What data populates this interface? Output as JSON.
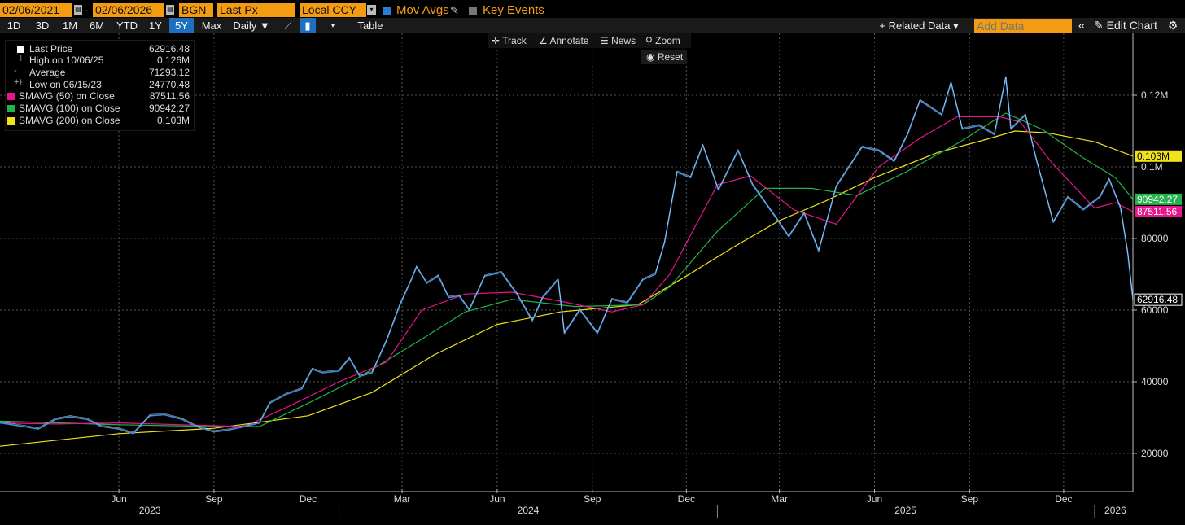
{
  "toolbar": {
    "start_date": "02/06/2021",
    "end_date": "02/06/2026",
    "source": "BGN",
    "field": "Last Px",
    "currency": "Local CCY",
    "mov_avgs": "Mov Avgs",
    "key_events": "Key Events",
    "periods": [
      "1D",
      "3D",
      "1M",
      "6M",
      "YTD",
      "1Y",
      "5Y",
      "Max"
    ],
    "selected_period": "5Y",
    "frequency": "Daily ▼",
    "table": "Table",
    "related_data": "+ Related Data ▾",
    "add_data_placeholder": "Add Data",
    "collapse": "«",
    "edit_chart": "✎ Edit Chart",
    "accent": "#f39c12",
    "selected_color": "#1d6fc0"
  },
  "chart_tools": {
    "track": "Track",
    "annotate": "Annotate",
    "news": "News",
    "zoom": "Zoom",
    "reset": "Reset"
  },
  "legend": [
    {
      "label": "Last Price",
      "value": "62916.48",
      "color": "#ffffff"
    },
    {
      "label": "High on 10/06/25",
      "value": "0.126M",
      "color": ""
    },
    {
      "label": "Average",
      "value": "71293.12",
      "color": ""
    },
    {
      "label": "Low on 06/15/23",
      "value": "24770.48",
      "color": ""
    },
    {
      "label": "SMAVG (50)  on Close",
      "value": "87511.56",
      "color": "#e8158c"
    },
    {
      "label": "SMAVG (100)  on Close",
      "value": "90942.27",
      "color": "#22b34a"
    },
    {
      "label": "SMAVG (200)  on Close",
      "value": "0.103M",
      "color": "#f2e21b"
    }
  ],
  "chart_data": {
    "type": "line",
    "y_ticks": [
      {
        "value": 20000,
        "label": "20000"
      },
      {
        "value": 40000,
        "label": "40000"
      },
      {
        "value": 60000,
        "label": "60000"
      },
      {
        "value": 80000,
        "label": "80000"
      },
      {
        "value": 100000,
        "label": "0.1M"
      },
      {
        "value": 120000,
        "label": "0.12M"
      }
    ],
    "ylim": [
      10000,
      135000
    ],
    "month_ticks": [
      "Jun",
      "Sep",
      "Dec",
      "Mar",
      "Jun",
      "Sep",
      "Dec",
      "Mar",
      "Jun",
      "Sep",
      "Dec"
    ],
    "month_dates": [
      "2023-06-01",
      "2023-09-01",
      "2023-12-01",
      "2024-03-01",
      "2024-06-01",
      "2024-09-01",
      "2024-12-01",
      "2025-03-01",
      "2025-06-01",
      "2025-09-01",
      "2025-12-01"
    ],
    "year_labels": [
      {
        "label": "2023",
        "date": "2023-07-01"
      },
      {
        "label": "2024",
        "date": "2024-07-01"
      },
      {
        "label": "2025",
        "date": "2025-07-01"
      },
      {
        "label": "2026",
        "date": "2026-01-20"
      }
    ],
    "x_start": "2023-02-06",
    "x_end": "2026-02-06",
    "last_value_labels": [
      {
        "label": "0.103M",
        "value": 103000,
        "color": "#f2e21b"
      },
      {
        "label": "90942.27",
        "value": 90942.27,
        "color": "#22b34a"
      },
      {
        "label": "87511.56",
        "value": 87511.56,
        "color": "#e8158c"
      },
      {
        "label": "62916.48",
        "value": 62916.48,
        "color": "#ffffff"
      }
    ],
    "series": [
      {
        "color": "#3b8fe0",
        "values": [
          [
            "2023-02-06",
            28500
          ],
          [
            "2023-03-01",
            27500
          ],
          [
            "2023-03-15",
            26800
          ],
          [
            "2023-04-01",
            29500
          ],
          [
            "2023-04-15",
            30200
          ],
          [
            "2023-05-01",
            29500
          ],
          [
            "2023-05-15",
            27500
          ],
          [
            "2023-06-01",
            26800
          ],
          [
            "2023-06-15",
            25500
          ],
          [
            "2023-07-01",
            30500
          ],
          [
            "2023-07-15",
            30800
          ],
          [
            "2023-08-01",
            29500
          ],
          [
            "2023-08-15",
            27500
          ],
          [
            "2023-09-01",
            26000
          ],
          [
            "2023-09-15",
            26500
          ],
          [
            "2023-10-01",
            27500
          ],
          [
            "2023-10-15",
            28500
          ],
          [
            "2023-10-25",
            34000
          ],
          [
            "2023-11-10",
            36500
          ],
          [
            "2023-11-25",
            38000
          ],
          [
            "2023-12-05",
            43500
          ],
          [
            "2023-12-15",
            42500
          ],
          [
            "2023-12-31",
            43000
          ],
          [
            "2024-01-10",
            46500
          ],
          [
            "2024-01-20",
            41500
          ],
          [
            "2024-02-01",
            42500
          ],
          [
            "2024-02-15",
            51500
          ],
          [
            "2024-02-28",
            61500
          ],
          [
            "2024-03-10",
            68500
          ],
          [
            "2024-03-15",
            72000
          ],
          [
            "2024-03-25",
            67500
          ],
          [
            "2024-04-05",
            69500
          ],
          [
            "2024-04-15",
            63500
          ],
          [
            "2024-04-25",
            64000
          ],
          [
            "2024-05-05",
            60000
          ],
          [
            "2024-05-20",
            69500
          ],
          [
            "2024-06-05",
            70500
          ],
          [
            "2024-06-20",
            64500
          ],
          [
            "2024-07-05",
            57000
          ],
          [
            "2024-07-15",
            63500
          ],
          [
            "2024-07-30",
            68500
          ],
          [
            "2024-08-05",
            53500
          ],
          [
            "2024-08-20",
            60000
          ],
          [
            "2024-09-06",
            53500
          ],
          [
            "2024-09-20",
            63000
          ],
          [
            "2024-10-05",
            62000
          ],
          [
            "2024-10-20",
            68500
          ],
          [
            "2024-11-01",
            70000
          ],
          [
            "2024-11-10",
            79000
          ],
          [
            "2024-11-22",
            98500
          ],
          [
            "2024-12-05",
            97000
          ],
          [
            "2024-12-17",
            106000
          ],
          [
            "2025-01-01",
            93500
          ],
          [
            "2025-01-20",
            104500
          ],
          [
            "2025-02-03",
            95000
          ],
          [
            "2025-02-25",
            86000
          ],
          [
            "2025-03-10",
            80500
          ],
          [
            "2025-03-25",
            87000
          ],
          [
            "2025-04-08",
            76500
          ],
          [
            "2025-04-25",
            94500
          ],
          [
            "2025-05-20",
            105500
          ],
          [
            "2025-06-05",
            104500
          ],
          [
            "2025-06-20",
            101500
          ],
          [
            "2025-07-03",
            109000
          ],
          [
            "2025-07-15",
            118500
          ],
          [
            "2025-08-05",
            114500
          ],
          [
            "2025-08-14",
            123500
          ],
          [
            "2025-08-25",
            110500
          ],
          [
            "2025-09-10",
            111500
          ],
          [
            "2025-09-25",
            109000
          ],
          [
            "2025-10-06",
            125000
          ],
          [
            "2025-10-11",
            110500
          ],
          [
            "2025-10-25",
            114500
          ],
          [
            "2025-11-05",
            101500
          ],
          [
            "2025-11-21",
            84500
          ],
          [
            "2025-12-05",
            91500
          ],
          [
            "2025-12-20",
            88000
          ],
          [
            "2026-01-05",
            91500
          ],
          [
            "2026-01-14",
            96500
          ],
          [
            "2026-01-25",
            88500
          ],
          [
            "2026-02-01",
            76000
          ],
          [
            "2026-02-06",
            62916.48
          ]
        ]
      },
      {
        "color": "#e8158c",
        "values": [
          [
            "2023-02-06",
            28500
          ],
          [
            "2023-04-01",
            28200
          ],
          [
            "2023-06-01",
            28500
          ],
          [
            "2023-08-01",
            28000
          ],
          [
            "2023-10-01",
            27500
          ],
          [
            "2023-11-15",
            33500
          ],
          [
            "2023-12-31",
            40000
          ],
          [
            "2024-02-15",
            45500
          ],
          [
            "2024-03-20",
            60000
          ],
          [
            "2024-05-01",
            64500
          ],
          [
            "2024-06-15",
            65000
          ],
          [
            "2024-08-01",
            62500
          ],
          [
            "2024-09-20",
            59500
          ],
          [
            "2024-10-20",
            61500
          ],
          [
            "2024-11-15",
            70000
          ],
          [
            "2024-12-31",
            95000
          ],
          [
            "2025-02-01",
            97500
          ],
          [
            "2025-03-15",
            88000
          ],
          [
            "2025-04-25",
            84000
          ],
          [
            "2025-06-05",
            100000
          ],
          [
            "2025-07-15",
            108000
          ],
          [
            "2025-08-20",
            114000
          ],
          [
            "2025-09-30",
            114000
          ],
          [
            "2025-10-20",
            112500
          ],
          [
            "2025-11-20",
            101000
          ],
          [
            "2025-12-31",
            88500
          ],
          [
            "2026-01-20",
            90000
          ],
          [
            "2026-02-06",
            87511.56
          ]
        ]
      },
      {
        "color": "#22b34a",
        "values": [
          [
            "2023-02-06",
            29000
          ],
          [
            "2023-06-01",
            28000
          ],
          [
            "2023-09-01",
            27500
          ],
          [
            "2023-10-15",
            27500
          ],
          [
            "2023-12-01",
            34000
          ],
          [
            "2024-01-15",
            40500
          ],
          [
            "2024-03-15",
            51000
          ],
          [
            "2024-05-01",
            59500
          ],
          [
            "2024-06-15",
            63000
          ],
          [
            "2024-08-15",
            61000
          ],
          [
            "2024-10-20",
            61500
          ],
          [
            "2024-11-15",
            66500
          ],
          [
            "2024-12-31",
            82000
          ],
          [
            "2025-02-15",
            94000
          ],
          [
            "2025-04-01",
            94000
          ],
          [
            "2025-05-15",
            92000
          ],
          [
            "2025-07-01",
            98500
          ],
          [
            "2025-08-20",
            106500
          ],
          [
            "2025-10-06",
            115000
          ],
          [
            "2025-11-10",
            110500
          ],
          [
            "2025-12-20",
            102500
          ],
          [
            "2026-01-20",
            97000
          ],
          [
            "2026-02-06",
            90942.27
          ]
        ]
      },
      {
        "color": "#f2e21b",
        "values": [
          [
            "2023-02-06",
            22000
          ],
          [
            "2023-06-01",
            25500
          ],
          [
            "2023-09-01",
            27000
          ],
          [
            "2023-12-01",
            30500
          ],
          [
            "2024-02-01",
            37000
          ],
          [
            "2024-04-01",
            47500
          ],
          [
            "2024-06-01",
            56000
          ],
          [
            "2024-08-01",
            59500
          ],
          [
            "2024-10-15",
            61500
          ],
          [
            "2024-12-01",
            69500
          ],
          [
            "2025-01-15",
            77500
          ],
          [
            "2025-03-01",
            85000
          ],
          [
            "2025-04-15",
            90500
          ],
          [
            "2025-06-01",
            97000
          ],
          [
            "2025-08-01",
            104000
          ],
          [
            "2025-09-15",
            107500
          ],
          [
            "2025-10-15",
            110000
          ],
          [
            "2025-11-15",
            109500
          ],
          [
            "2025-12-31",
            107000
          ],
          [
            "2026-02-06",
            103000
          ]
        ]
      }
    ]
  }
}
